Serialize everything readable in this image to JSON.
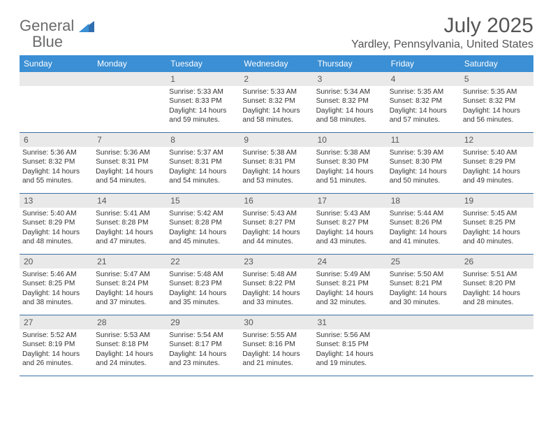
{
  "logo": {
    "part1": "General",
    "part2": "Blue"
  },
  "title": "July 2025",
  "location": "Yardley, Pennsylvania, United States",
  "colors": {
    "header_bg": "#3b8fd4",
    "header_text": "#ffffff",
    "daynum_bg": "#e9e9e9",
    "row_border": "#3b6ea5",
    "logo_gray": "#6b6b6b",
    "logo_blue": "#3b7fc4",
    "text": "#333333"
  },
  "days_of_week": [
    "Sunday",
    "Monday",
    "Tuesday",
    "Wednesday",
    "Thursday",
    "Friday",
    "Saturday"
  ],
  "weeks": [
    [
      null,
      null,
      {
        "n": "1",
        "sr": "Sunrise: 5:33 AM",
        "ss": "Sunset: 8:33 PM",
        "dl1": "Daylight: 14 hours",
        "dl2": "and 59 minutes."
      },
      {
        "n": "2",
        "sr": "Sunrise: 5:33 AM",
        "ss": "Sunset: 8:32 PM",
        "dl1": "Daylight: 14 hours",
        "dl2": "and 58 minutes."
      },
      {
        "n": "3",
        "sr": "Sunrise: 5:34 AM",
        "ss": "Sunset: 8:32 PM",
        "dl1": "Daylight: 14 hours",
        "dl2": "and 58 minutes."
      },
      {
        "n": "4",
        "sr": "Sunrise: 5:35 AM",
        "ss": "Sunset: 8:32 PM",
        "dl1": "Daylight: 14 hours",
        "dl2": "and 57 minutes."
      },
      {
        "n": "5",
        "sr": "Sunrise: 5:35 AM",
        "ss": "Sunset: 8:32 PM",
        "dl1": "Daylight: 14 hours",
        "dl2": "and 56 minutes."
      }
    ],
    [
      {
        "n": "6",
        "sr": "Sunrise: 5:36 AM",
        "ss": "Sunset: 8:32 PM",
        "dl1": "Daylight: 14 hours",
        "dl2": "and 55 minutes."
      },
      {
        "n": "7",
        "sr": "Sunrise: 5:36 AM",
        "ss": "Sunset: 8:31 PM",
        "dl1": "Daylight: 14 hours",
        "dl2": "and 54 minutes."
      },
      {
        "n": "8",
        "sr": "Sunrise: 5:37 AM",
        "ss": "Sunset: 8:31 PM",
        "dl1": "Daylight: 14 hours",
        "dl2": "and 54 minutes."
      },
      {
        "n": "9",
        "sr": "Sunrise: 5:38 AM",
        "ss": "Sunset: 8:31 PM",
        "dl1": "Daylight: 14 hours",
        "dl2": "and 53 minutes."
      },
      {
        "n": "10",
        "sr": "Sunrise: 5:38 AM",
        "ss": "Sunset: 8:30 PM",
        "dl1": "Daylight: 14 hours",
        "dl2": "and 51 minutes."
      },
      {
        "n": "11",
        "sr": "Sunrise: 5:39 AM",
        "ss": "Sunset: 8:30 PM",
        "dl1": "Daylight: 14 hours",
        "dl2": "and 50 minutes."
      },
      {
        "n": "12",
        "sr": "Sunrise: 5:40 AM",
        "ss": "Sunset: 8:29 PM",
        "dl1": "Daylight: 14 hours",
        "dl2": "and 49 minutes."
      }
    ],
    [
      {
        "n": "13",
        "sr": "Sunrise: 5:40 AM",
        "ss": "Sunset: 8:29 PM",
        "dl1": "Daylight: 14 hours",
        "dl2": "and 48 minutes."
      },
      {
        "n": "14",
        "sr": "Sunrise: 5:41 AM",
        "ss": "Sunset: 8:28 PM",
        "dl1": "Daylight: 14 hours",
        "dl2": "and 47 minutes."
      },
      {
        "n": "15",
        "sr": "Sunrise: 5:42 AM",
        "ss": "Sunset: 8:28 PM",
        "dl1": "Daylight: 14 hours",
        "dl2": "and 45 minutes."
      },
      {
        "n": "16",
        "sr": "Sunrise: 5:43 AM",
        "ss": "Sunset: 8:27 PM",
        "dl1": "Daylight: 14 hours",
        "dl2": "and 44 minutes."
      },
      {
        "n": "17",
        "sr": "Sunrise: 5:43 AM",
        "ss": "Sunset: 8:27 PM",
        "dl1": "Daylight: 14 hours",
        "dl2": "and 43 minutes."
      },
      {
        "n": "18",
        "sr": "Sunrise: 5:44 AM",
        "ss": "Sunset: 8:26 PM",
        "dl1": "Daylight: 14 hours",
        "dl2": "and 41 minutes."
      },
      {
        "n": "19",
        "sr": "Sunrise: 5:45 AM",
        "ss": "Sunset: 8:25 PM",
        "dl1": "Daylight: 14 hours",
        "dl2": "and 40 minutes."
      }
    ],
    [
      {
        "n": "20",
        "sr": "Sunrise: 5:46 AM",
        "ss": "Sunset: 8:25 PM",
        "dl1": "Daylight: 14 hours",
        "dl2": "and 38 minutes."
      },
      {
        "n": "21",
        "sr": "Sunrise: 5:47 AM",
        "ss": "Sunset: 8:24 PM",
        "dl1": "Daylight: 14 hours",
        "dl2": "and 37 minutes."
      },
      {
        "n": "22",
        "sr": "Sunrise: 5:48 AM",
        "ss": "Sunset: 8:23 PM",
        "dl1": "Daylight: 14 hours",
        "dl2": "and 35 minutes."
      },
      {
        "n": "23",
        "sr": "Sunrise: 5:48 AM",
        "ss": "Sunset: 8:22 PM",
        "dl1": "Daylight: 14 hours",
        "dl2": "and 33 minutes."
      },
      {
        "n": "24",
        "sr": "Sunrise: 5:49 AM",
        "ss": "Sunset: 8:21 PM",
        "dl1": "Daylight: 14 hours",
        "dl2": "and 32 minutes."
      },
      {
        "n": "25",
        "sr": "Sunrise: 5:50 AM",
        "ss": "Sunset: 8:21 PM",
        "dl1": "Daylight: 14 hours",
        "dl2": "and 30 minutes."
      },
      {
        "n": "26",
        "sr": "Sunrise: 5:51 AM",
        "ss": "Sunset: 8:20 PM",
        "dl1": "Daylight: 14 hours",
        "dl2": "and 28 minutes."
      }
    ],
    [
      {
        "n": "27",
        "sr": "Sunrise: 5:52 AM",
        "ss": "Sunset: 8:19 PM",
        "dl1": "Daylight: 14 hours",
        "dl2": "and 26 minutes."
      },
      {
        "n": "28",
        "sr": "Sunrise: 5:53 AM",
        "ss": "Sunset: 8:18 PM",
        "dl1": "Daylight: 14 hours",
        "dl2": "and 24 minutes."
      },
      {
        "n": "29",
        "sr": "Sunrise: 5:54 AM",
        "ss": "Sunset: 8:17 PM",
        "dl1": "Daylight: 14 hours",
        "dl2": "and 23 minutes."
      },
      {
        "n": "30",
        "sr": "Sunrise: 5:55 AM",
        "ss": "Sunset: 8:16 PM",
        "dl1": "Daylight: 14 hours",
        "dl2": "and 21 minutes."
      },
      {
        "n": "31",
        "sr": "Sunrise: 5:56 AM",
        "ss": "Sunset: 8:15 PM",
        "dl1": "Daylight: 14 hours",
        "dl2": "and 19 minutes."
      },
      null,
      null
    ]
  ]
}
